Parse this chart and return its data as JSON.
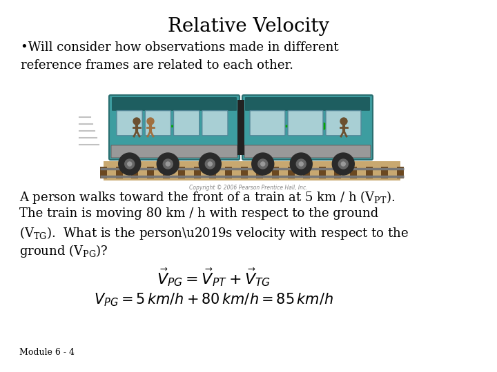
{
  "title": "Relative Velocity",
  "title_fontsize": 20,
  "bg_color": "#ffffff",
  "bullet_text": "•Will consider how observations made in different\nreference frames are related to each other.",
  "bullet_fontsize": 13,
  "body_fontsize": 13,
  "eq_fontsize": 14,
  "footer_text": "Module 6 - 4",
  "footer_fontsize": 9,
  "text_color": "#000000",
  "train_teal": "#3d9da0",
  "train_dark": "#2a6e70",
  "train_gray": "#8a8a8a",
  "train_darkgray": "#444444",
  "win_blue": "#a8cfd4",
  "track_brown": "#a08060",
  "tie_brown": "#7a5a35",
  "arrow_green": "#00aa00",
  "copyright_text": "Copyright © 2006 Pearson Prentice Hall, Inc."
}
